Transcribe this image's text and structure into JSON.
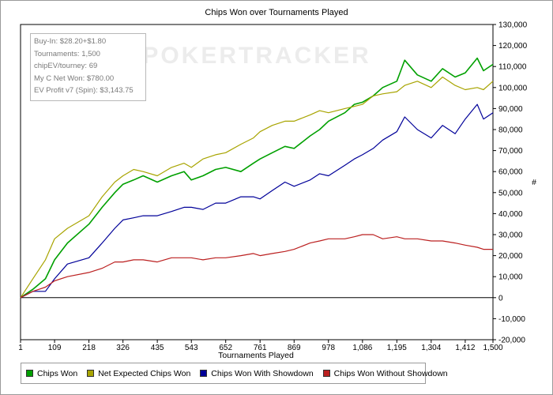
{
  "chart_data": {
    "type": "line",
    "title": "Chips Won over Tournaments Played",
    "xlabel": "Tournaments Played",
    "ylabel": "#",
    "xlim": [
      1,
      1500
    ],
    "ylim": [
      -20000,
      130000
    ],
    "x_ticks": [
      "1",
      "109",
      "218",
      "326",
      "435",
      "543",
      "652",
      "761",
      "869",
      "978",
      "1,086",
      "1,195",
      "1,304",
      "1,412",
      "1,500"
    ],
    "y_ticks": [
      "-20,000",
      "-10,000",
      "0",
      "10,000",
      "20,000",
      "30,000",
      "40,000",
      "50,000",
      "60,000",
      "70,000",
      "80,000",
      "90,000",
      "100,000",
      "110,000",
      "120,000",
      "130,000"
    ],
    "grid": false,
    "legend_position": "bottom",
    "watermark": "POKERTRACKER",
    "x": [
      1,
      40,
      80,
      109,
      150,
      218,
      260,
      300,
      326,
      360,
      390,
      435,
      480,
      520,
      543,
      580,
      620,
      652,
      700,
      740,
      761,
      800,
      840,
      869,
      920,
      950,
      978,
      1030,
      1060,
      1086,
      1120,
      1150,
      1195,
      1220,
      1260,
      1304,
      1340,
      1380,
      1412,
      1450,
      1470,
      1500
    ],
    "series": [
      {
        "name": "Chips Won",
        "color": "#00a000",
        "values": [
          0,
          4000,
          9000,
          18000,
          26000,
          35000,
          43000,
          50000,
          54000,
          56000,
          58000,
          55000,
          58000,
          60000,
          56000,
          58000,
          61000,
          62000,
          60000,
          64000,
          66000,
          69000,
          72000,
          71000,
          77000,
          80000,
          84000,
          88000,
          92000,
          93000,
          96000,
          100000,
          103000,
          113000,
          106000,
          103000,
          109000,
          105000,
          107000,
          114000,
          108000,
          111000
        ]
      },
      {
        "name": "Net Expected Chips Won",
        "color": "#a8a400",
        "values": [
          0,
          9000,
          18000,
          28000,
          33000,
          39000,
          48000,
          55000,
          58000,
          61000,
          60000,
          58000,
          62000,
          64000,
          62000,
          66000,
          68000,
          69000,
          73000,
          76000,
          79000,
          82000,
          84000,
          84000,
          87000,
          89000,
          88000,
          90000,
          91000,
          92000,
          96000,
          97000,
          98000,
          101000,
          103000,
          100000,
          105000,
          101000,
          99000,
          100000,
          99000,
          103000
        ]
      },
      {
        "name": "Chips Won With Showdown",
        "color": "#000099",
        "values": [
          0,
          3000,
          3000,
          9000,
          16000,
          19000,
          26000,
          33000,
          37000,
          38000,
          39000,
          39000,
          41000,
          43000,
          43000,
          42000,
          45000,
          45000,
          48000,
          48000,
          47000,
          51000,
          55000,
          53000,
          56000,
          59000,
          58000,
          63000,
          66000,
          68000,
          71000,
          75000,
          79000,
          86000,
          80000,
          76000,
          82000,
          78000,
          85000,
          92000,
          85000,
          88000
        ]
      },
      {
        "name": "Chips Won Without Showdown",
        "color": "#bb2020",
        "values": [
          0,
          3000,
          5000,
          8000,
          10000,
          12000,
          14000,
          17000,
          17000,
          18000,
          18000,
          17000,
          19000,
          19000,
          19000,
          18000,
          19000,
          19000,
          20000,
          21000,
          20000,
          21000,
          22000,
          23000,
          26000,
          27000,
          28000,
          28000,
          29000,
          30000,
          30000,
          28000,
          29000,
          28000,
          28000,
          27000,
          27000,
          26000,
          25000,
          24000,
          23000,
          23000
        ]
      }
    ]
  },
  "stats": {
    "buy_in": "Buy-In: $28.20+$1.80",
    "tournaments": "Tournaments: 1,500",
    "chip_ev": "chipEV/tourney: 69",
    "net_won": "My C Net Won: $780.00",
    "ev_profit": "EV Profit v7 (Spin): $3,143.75"
  }
}
